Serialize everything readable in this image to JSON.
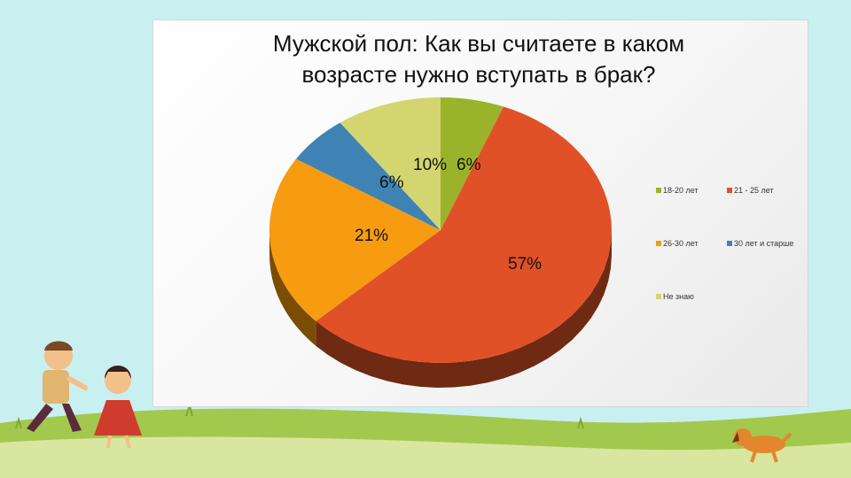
{
  "chart_data": {
    "type": "pie",
    "title_lines": [
      "Мужской пол: Как вы считаете в каком",
      "возрасте нужно вступать в брак?"
    ],
    "categories": [
      "18-20 лет",
      "21 - 25 лет",
      "26-30 лет",
      "30 лет и старше",
      "Не знаю"
    ],
    "values": [
      6,
      57,
      21,
      6,
      10
    ],
    "data_labels": [
      "6%",
      "57%",
      "21%",
      "6%",
      "10%"
    ],
    "colors": [
      "#9bb32a",
      "#e05128",
      "#f79b11",
      "#3e83b4",
      "#d3d670"
    ],
    "side_colors": [
      "#5e6c16",
      "#6e2a12",
      "#7a4d05",
      "#1f425b",
      "#6b6c37"
    ],
    "legend_position": "right"
  }
}
